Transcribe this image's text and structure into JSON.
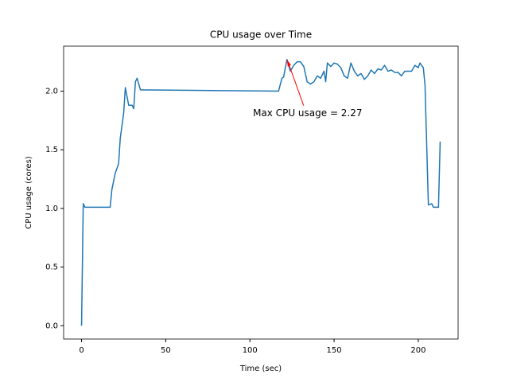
{
  "chart_data": {
    "type": "line",
    "title": "CPU usage over Time",
    "xlabel": "Time (sec)",
    "ylabel": "CPU usage (cores)",
    "x": [
      0,
      1,
      2,
      4,
      6,
      8,
      10,
      12,
      14,
      17,
      18,
      20,
      22,
      23,
      25,
      26,
      28,
      30,
      31,
      32,
      33,
      35,
      40,
      117,
      119,
      120,
      122,
      124,
      126,
      128,
      130,
      132,
      134,
      136,
      138,
      140,
      142,
      144,
      145,
      146,
      148,
      150,
      152,
      154,
      156,
      158,
      160,
      162,
      164,
      166,
      168,
      170,
      172,
      174,
      176,
      178,
      180,
      182,
      184,
      186,
      188,
      190,
      192,
      194,
      196,
      198,
      200,
      201,
      203,
      204,
      206,
      208,
      209,
      212,
      213
    ],
    "series": [
      {
        "name": "CPU usage",
        "color": "#1f77b4",
        "values": [
          0,
          1.04,
          1.01,
          1.01,
          1.01,
          1.01,
          1.01,
          1.01,
          1.01,
          1.01,
          1.16,
          1.3,
          1.38,
          1.6,
          1.81,
          2.03,
          1.88,
          1.88,
          1.85,
          2.08,
          2.11,
          2.01,
          2.01,
          2.0,
          2.11,
          2.12,
          2.27,
          2.17,
          2.22,
          2.25,
          2.25,
          2.21,
          2.08,
          2.06,
          2.08,
          2.13,
          2.11,
          2.17,
          2.08,
          2.24,
          2.21,
          2.24,
          2.23,
          2.2,
          2.13,
          2.11,
          2.24,
          2.17,
          2.13,
          2.15,
          2.1,
          2.13,
          2.18,
          2.15,
          2.19,
          2.18,
          2.22,
          2.17,
          2.18,
          2.16,
          2.16,
          2.13,
          2.17,
          2.17,
          2.17,
          2.22,
          2.2,
          2.24,
          2.2,
          2.05,
          1.03,
          1.04,
          1.01,
          1.01,
          1.57
        ]
      }
    ],
    "xlim": [
      -10.65,
      223.65
    ],
    "ylim": [
      -0.1135,
      2.3835
    ],
    "xticks": [
      0,
      50,
      100,
      150,
      200
    ],
    "yticks": [
      {
        "value": 0,
        "label": "0.0"
      },
      {
        "value": 0.5,
        "label": "0.5"
      },
      {
        "value": 1,
        "label": "1.0"
      },
      {
        "value": 1.5,
        "label": "1.5"
      },
      {
        "value": 2,
        "label": "2.0"
      }
    ],
    "annotation": {
      "text": "Max CPU usage = 2.27",
      "x": 122,
      "y": 2.27,
      "color": "red"
    }
  }
}
